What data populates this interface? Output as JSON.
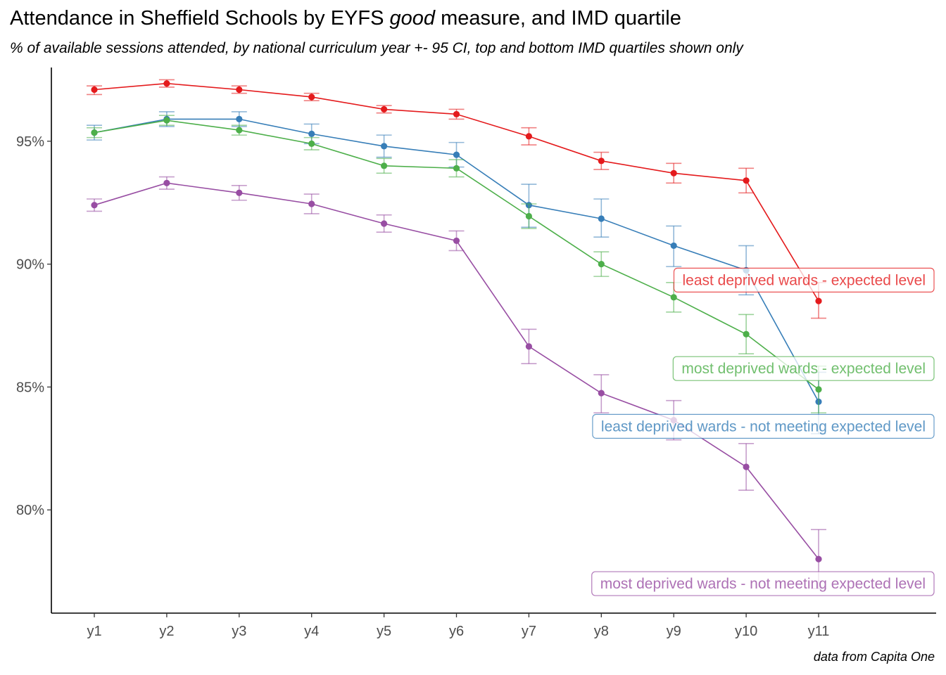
{
  "header": {
    "title_pre": "Attendance in Sheffield Schools by EYFS ",
    "title_em": "good",
    "title_post": " measure, and IMD quartile",
    "subtitle": "% of available sessions attended, by national curriculum year +- 95 CI, top and bottom IMD quartiles shown only"
  },
  "caption": "data from Capita One",
  "chart_data": {
    "type": "line",
    "title": "Attendance in Sheffield Schools by EYFS good measure, and IMD quartile",
    "subtitle": "% of available sessions attended, by national curriculum year +- 95 CI, top and bottom IMD quartiles shown only",
    "xlabel": "",
    "ylabel": "",
    "categories": [
      "y1",
      "y2",
      "y3",
      "y4",
      "y5",
      "y6",
      "y7",
      "y8",
      "y9",
      "y10",
      "y11"
    ],
    "ylim": [
      75.8,
      98.0
    ],
    "yticks": [
      80,
      85,
      90,
      95
    ],
    "ytick_labels": [
      "80%",
      "85%",
      "90%",
      "95%"
    ],
    "grid": false,
    "legend": "direct labels at right end of lines",
    "series": [
      {
        "name": "least deprived wards - expected level",
        "color": "#E41A1C",
        "values": [
          97.1,
          97.35,
          97.1,
          96.8,
          96.3,
          96.1,
          95.2,
          94.2,
          93.7,
          93.4,
          88.5
        ],
        "ci_low": [
          96.9,
          97.2,
          96.95,
          96.65,
          96.15,
          95.9,
          94.85,
          93.85,
          93.3,
          92.9,
          87.8
        ],
        "ci_high": [
          97.25,
          97.5,
          97.25,
          96.95,
          96.45,
          96.3,
          95.55,
          94.55,
          94.1,
          93.9,
          89.25
        ]
      },
      {
        "name": "least deprived wards - not meeting expected level",
        "color": "#377EB8",
        "values": [
          95.35,
          95.9,
          95.9,
          95.3,
          94.8,
          94.45,
          92.4,
          91.85,
          90.75,
          89.75,
          84.4
        ],
        "ci_low": [
          95.05,
          95.6,
          95.6,
          94.9,
          94.35,
          93.95,
          91.5,
          91.1,
          89.9,
          88.75,
          83.1
        ],
        "ci_high": [
          95.65,
          96.2,
          96.2,
          95.7,
          95.25,
          94.95,
          93.25,
          92.65,
          91.55,
          90.75,
          85.6
        ]
      },
      {
        "name": "most deprived wards - expected level",
        "color": "#4DAF4A",
        "values": [
          95.35,
          95.85,
          95.45,
          94.9,
          94.0,
          93.9,
          91.95,
          90.0,
          88.65,
          87.15,
          84.9
        ],
        "ci_low": [
          95.15,
          95.65,
          95.25,
          94.65,
          93.7,
          93.55,
          91.45,
          89.5,
          88.05,
          86.35,
          83.95
        ],
        "ci_high": [
          95.55,
          96.05,
          95.65,
          95.15,
          94.3,
          94.25,
          92.45,
          90.5,
          89.25,
          87.95,
          85.85
        ]
      },
      {
        "name": "most deprived wards - not meeting expected level",
        "color": "#984EA3",
        "values": [
          92.4,
          93.3,
          92.9,
          92.45,
          91.65,
          90.95,
          86.65,
          84.75,
          83.65,
          81.75,
          78.0
        ],
        "ci_low": [
          92.15,
          93.05,
          92.6,
          92.05,
          91.3,
          90.55,
          85.95,
          83.95,
          82.85,
          80.8,
          76.8
        ],
        "ci_high": [
          92.65,
          93.55,
          93.2,
          92.85,
          92.0,
          91.35,
          87.35,
          85.5,
          84.45,
          82.7,
          79.2
        ]
      }
    ],
    "annotations": [
      {
        "text": "least deprived wards - expected level",
        "color": "#E41A1C",
        "anchor_category": "y11",
        "anchor_y": 89.35
      },
      {
        "text": "most deprived wards - expected level",
        "color": "#4DAF4A",
        "anchor_category": "y11",
        "anchor_y": 85.75
      },
      {
        "text": "least deprived wards - not meeting expected level",
        "color": "#377EB8",
        "anchor_category": "y11",
        "anchor_y": 83.4
      },
      {
        "text": "most deprived wards - not meeting expected level",
        "color": "#984EA3",
        "anchor_category": "y11",
        "anchor_y": 77.0
      }
    ]
  }
}
